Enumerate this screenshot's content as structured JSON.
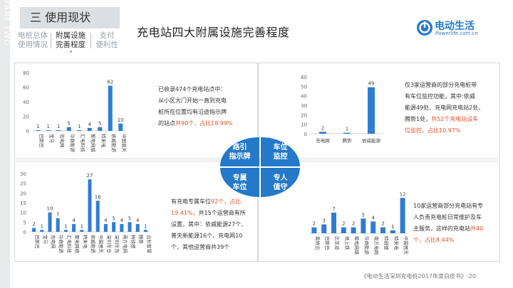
{
  "sidebar_label": "PART TWO",
  "section": {
    "number": "三",
    "title": "使用现状"
  },
  "nav": [
    {
      "line1": "电桩总体",
      "line2": "使用情况",
      "active": false
    },
    {
      "line1": "附属设施",
      "line2": "完善程度",
      "active": true
    },
    {
      "line1": "支付",
      "line2": "便利性",
      "active": false
    }
  ],
  "page_title": "充电站四大附属设施完善程度",
  "logo": {
    "name": "电动生活",
    "url": "Powerlife.com.cn"
  },
  "center": {
    "tl": "路引\n指示牌",
    "tr": "车位\n监控",
    "bl": "专属\n车位",
    "br": "专人\n值守"
  },
  "texts": {
    "tl": {
      "p1": "已收录474个充电站点中：",
      "p2": "从小区大门开始一直到充电",
      "p3": "桩所在位置均有沿途指示牌",
      "p4a": "的站点",
      "p4b": "共90个，占比18.99%"
    },
    "tr": {
      "p1": "仅3家运营商的部分充电桩带",
      "p2": "有车位监控功能，其中:依威",
      "p3": "能源49处、充电网充电站2处、",
      "p4a": "腾势1处，",
      "p4b": "共52个充电站设车",
      "p5": "位监控，占比10.97%"
    },
    "bl": {
      "p1a": "有充电专属车位",
      "p1b": "92个，占比",
      "p2a": "19.41%，",
      "p2b": "共15个运营商有所",
      "p3": "设置，其中：依威能源27个、",
      "p4": "普天新能源16个、充电网10",
      "p5": "个，其他运营商共39个"
    },
    "br": {
      "p1": "10家运营商部分充电站有专",
      "p2": "人负责充电桩日常维护及车",
      "p3a": "主服务，这样的充电站",
      "p3b": "共40",
      "p4": "个，占比8.44%"
    }
  },
  "footer": "《电动生活深圳充电桩2017年度白皮书》-20",
  "colors": {
    "bar": "#2f7dd1",
    "accent": "#2479c9",
    "highlight": "#e0532f"
  },
  "chart_data": [
    {
      "id": "guide-sign",
      "type": "bar",
      "categories": [
        "巴斯巴",
        "宝马",
        "充电网",
        "华商能源",
        "汇电科技",
        "聚电网络",
        "特来电",
        "依威能源",
        "中国普天"
      ],
      "values": [
        1,
        1,
        1,
        5,
        1,
        4,
        5,
        62,
        10
      ],
      "ylim": [
        0,
        80
      ],
      "yticks": [
        0,
        20,
        40,
        60,
        80
      ]
    },
    {
      "id": "parking-monitor",
      "type": "bar",
      "categories": [
        "充电网",
        "腾势",
        "依威能源"
      ],
      "values": [
        2,
        1,
        49
      ],
      "ylim": [
        0,
        60
      ],
      "yticks": [
        0,
        10,
        20,
        30,
        40,
        50,
        60
      ]
    },
    {
      "id": "dedicated-parking",
      "type": "bar",
      "categories": [
        "巴斯巴",
        "宝马",
        "充电网",
        "华商能源",
        "汇电科技",
        "聚电网络",
        "特来电",
        "依威能源",
        "中国普天",
        "深圳车仓",
        "深圳乐充",
        "南方电网",
        "特锐德",
        "腾势",
        "云杉智慧"
      ],
      "values": [
        2,
        1,
        10,
        7,
        1,
        4,
        1,
        27,
        16,
        4,
        5,
        4,
        5,
        4,
        1
      ],
      "ylim": [
        0,
        30
      ],
      "yticks": [
        0,
        5,
        10,
        15,
        20,
        25,
        30
      ]
    },
    {
      "id": "attendant",
      "type": "bar",
      "categories": [
        "奥特迅",
        "巴斯巴",
        "比亚迪",
        "地上铁",
        "聚电网络",
        "华商能源",
        "南方电网",
        "特锐德",
        "特来电",
        "中国普天"
      ],
      "values": [
        2,
        3,
        7,
        2,
        2,
        5,
        4,
        2,
        1,
        12
      ],
      "ylim": [
        0,
        14
      ],
      "yticks": []
    }
  ]
}
